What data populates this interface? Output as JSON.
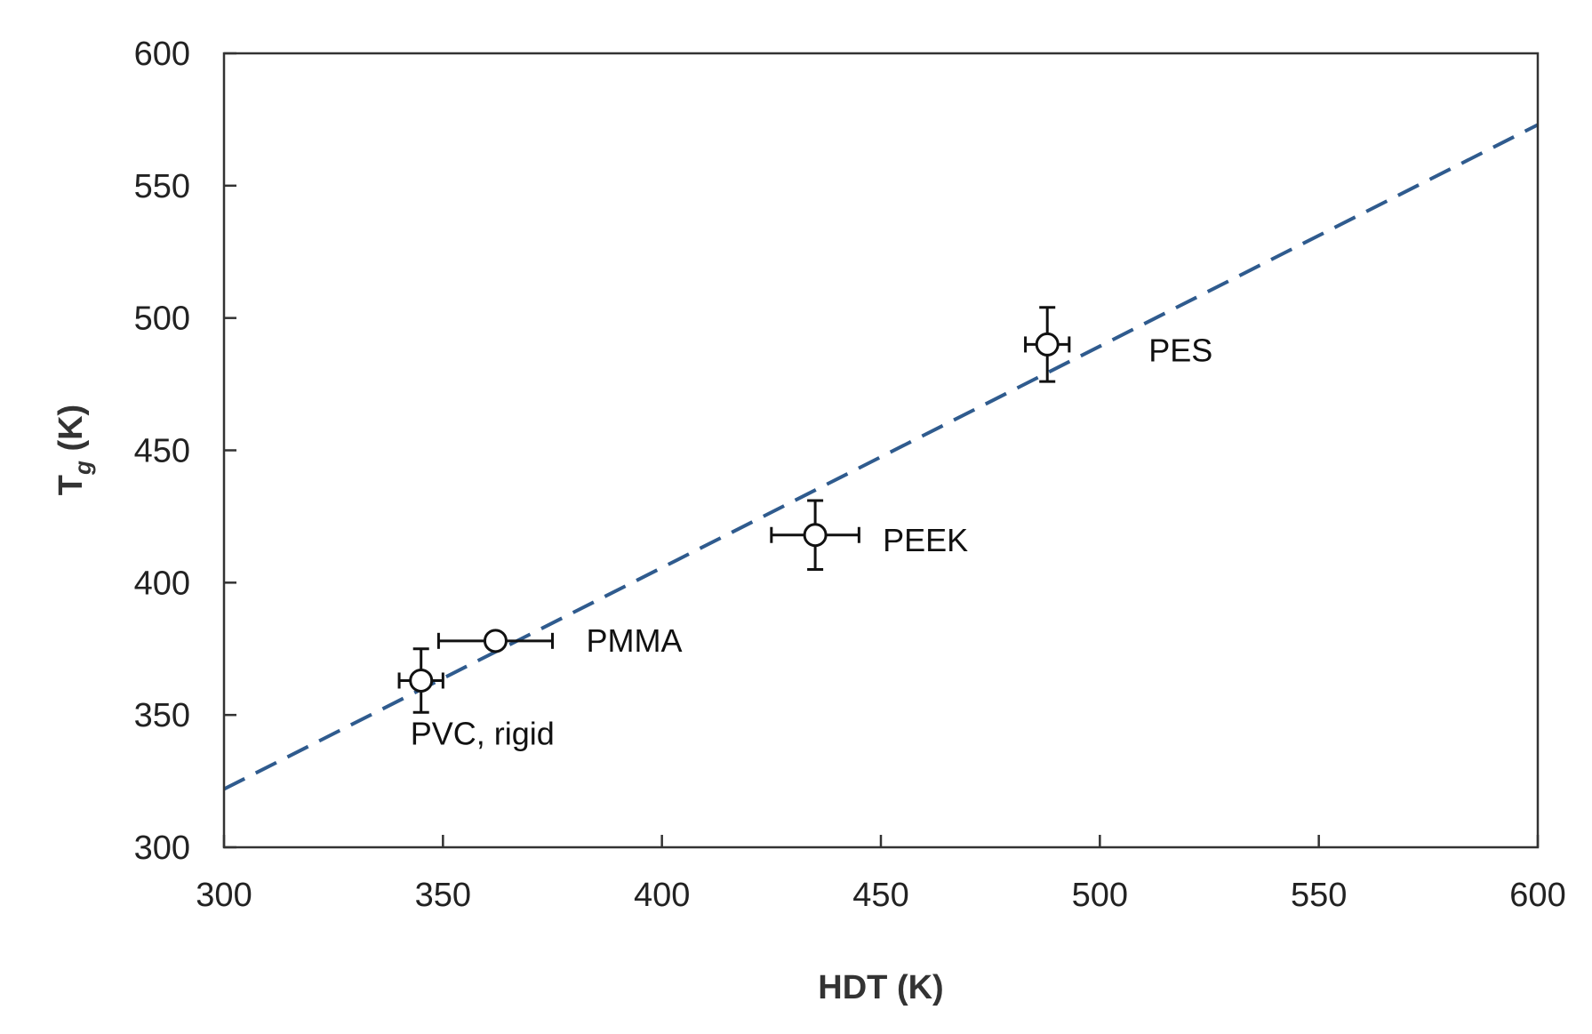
{
  "chart_data": {
    "type": "scatter",
    "title": "",
    "xlabel": "HDT (K)",
    "ylabel": {
      "main": "T",
      "sub": "g",
      "unit": " (K)"
    },
    "xlim": [
      300,
      600
    ],
    "ylim": [
      300,
      600
    ],
    "x_ticks": [
      300,
      350,
      400,
      450,
      500,
      550,
      600
    ],
    "y_ticks": [
      300,
      350,
      400,
      450,
      500,
      550,
      600
    ],
    "grid": false,
    "legend": "none",
    "points": [
      {
        "label": "PVC, rigid",
        "x": 345,
        "y": 363,
        "x_err": 5,
        "y_err": 12
      },
      {
        "label": "PMMA",
        "x": 362,
        "y": 378,
        "x_err_low": 13,
        "x_err_high": 13,
        "y_err": 0
      },
      {
        "label": "PEEK",
        "x": 435,
        "y": 418,
        "x_err": 10,
        "y_err": 13
      },
      {
        "label": "PES",
        "x": 488,
        "y": 490,
        "x_err": 5,
        "y_err": 14
      }
    ],
    "trendline": {
      "style": "dashed",
      "color": "#2f5b8e",
      "x": [
        300,
        600
      ],
      "y": [
        322,
        573
      ]
    }
  }
}
